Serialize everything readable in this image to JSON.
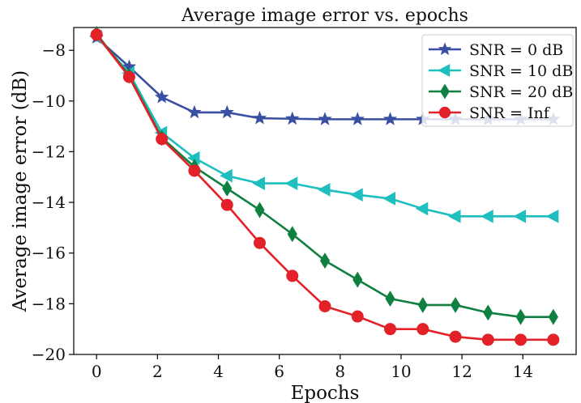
{
  "chart_data": {
    "type": "line",
    "title": "Average image error vs. epochs",
    "xlabel": "Epochs",
    "ylabel": "Average image error (dB)",
    "xlim": [
      -0.75,
      15.75
    ],
    "ylim": [
      -20,
      -7.1
    ],
    "xticks": [
      0,
      2,
      4,
      6,
      8,
      10,
      12,
      14
    ],
    "yticks": [
      -20,
      -18,
      -16,
      -14,
      -12,
      -10,
      -8
    ],
    "grid": false,
    "legend_position": "top-right",
    "x": [
      0,
      1.071,
      2.143,
      3.214,
      4.286,
      5.357,
      6.429,
      7.5,
      8.571,
      9.643,
      10.714,
      11.786,
      12.857,
      13.929,
      15
    ],
    "series": [
      {
        "name": "SNR = 0 dB",
        "color": "#3a4fa1",
        "marker": "star",
        "values": [
          -7.5,
          -8.65,
          -9.85,
          -10.45,
          -10.45,
          -10.68,
          -10.7,
          -10.72,
          -10.72,
          -10.72,
          -10.72,
          -10.72,
          -10.72,
          -10.72,
          -10.72
        ]
      },
      {
        "name": "SNR = 10 dB",
        "color": "#1fbfbf",
        "marker": "triangle-left",
        "values": [
          -7.45,
          -8.9,
          -11.25,
          -12.25,
          -12.95,
          -13.25,
          -13.25,
          -13.5,
          -13.7,
          -13.85,
          -14.25,
          -14.55,
          -14.55,
          -14.55,
          -14.55
        ]
      },
      {
        "name": "SNR = 20 dB",
        "color": "#0f8040",
        "marker": "thin-diamond",
        "values": [
          -7.35,
          -9.0,
          -11.45,
          -12.6,
          -13.45,
          -14.3,
          -15.25,
          -16.3,
          -17.05,
          -17.8,
          -18.05,
          -18.05,
          -18.35,
          -18.52,
          -18.52
        ]
      },
      {
        "name": "SNR = Inf",
        "color": "#e32128",
        "marker": "circle",
        "values": [
          -7.38,
          -9.05,
          -11.5,
          -12.75,
          -14.1,
          -15.6,
          -16.9,
          -18.1,
          -18.5,
          -19.0,
          -19.0,
          -19.3,
          -19.42,
          -19.42,
          -19.42
        ]
      }
    ]
  }
}
